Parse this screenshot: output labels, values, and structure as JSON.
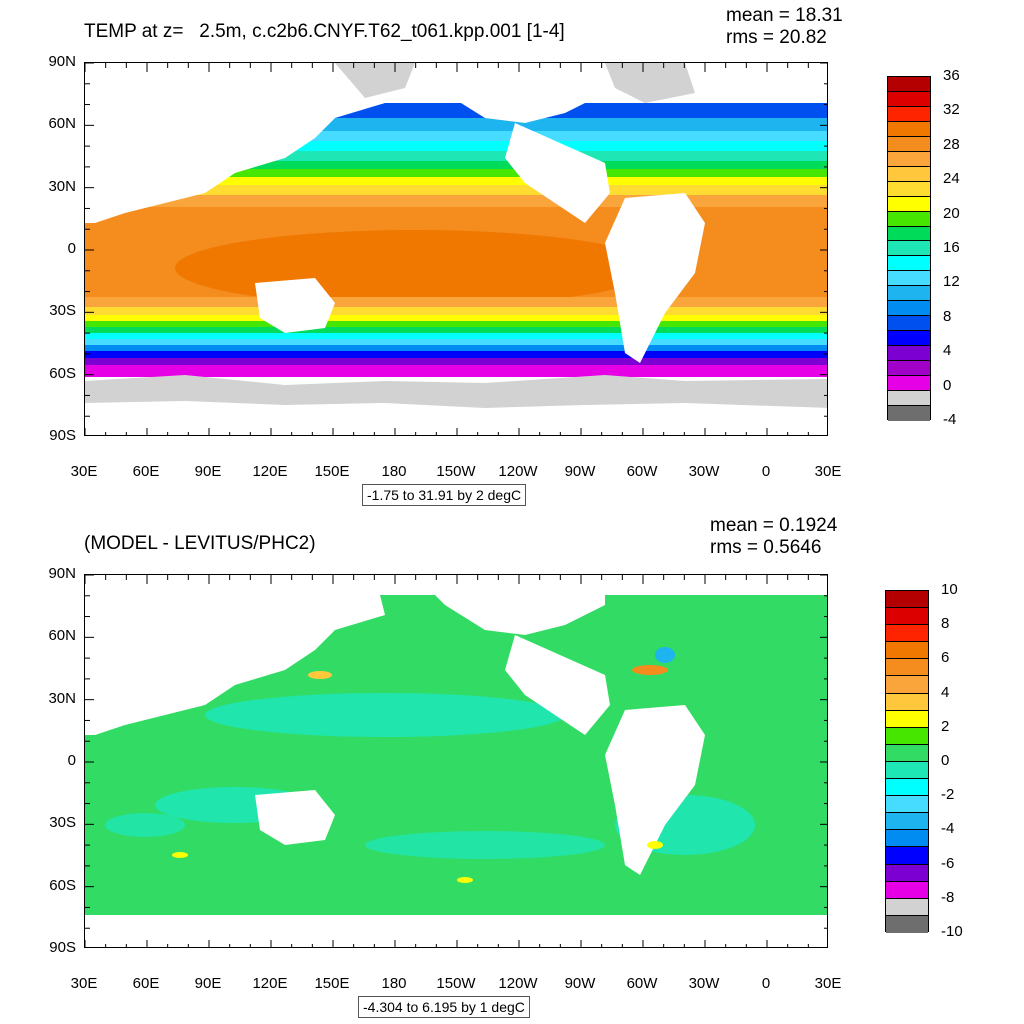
{
  "panels": [
    {
      "title": "TEMP at z=   2.5m, c.c2b6.CNYF.T62_t061.kpp.001 [1-4]",
      "mean_text": "mean = 18.31",
      "rms_text": "rms = 20.82",
      "range_text": "-1.75 to 31.91 by 2 degC",
      "lat_labels": [
        "90N",
        "60N",
        "30N",
        "0",
        "30S",
        "60S",
        "90S"
      ],
      "lon_labels": [
        "30E",
        "60E",
        "90E",
        "120E",
        "150E",
        "180",
        "150W",
        "120W",
        "90W",
        "60W",
        "30W",
        "0",
        "30E"
      ],
      "colorbar_labels": [
        "36",
        "32",
        "28",
        "24",
        "20",
        "16",
        "12",
        "8",
        "4",
        "0",
        "-4"
      ],
      "colorbar_colors": [
        "#b40000",
        "#dc0000",
        "#ff2400",
        "#f07800",
        "#f58c1e",
        "#faa53c",
        "#ffc83c",
        "#ffdc32",
        "#ffff00",
        "#46e600",
        "#00dc5a",
        "#1ee6b4",
        "#00ffff",
        "#46dcff",
        "#1eb4f0",
        "#008cf0",
        "#0050f0",
        "#0000ff",
        "#7d00d2",
        "#a000c8",
        "#e600e6",
        "#d2d2d2",
        "#6e6e6e"
      ]
    },
    {
      "title": "(MODEL - LEVITUS/PHC2)",
      "mean_text": "mean = 0.1924",
      "rms_text": "rms = 0.5646",
      "range_text": "-4.304 to 6.195 by 1 degC",
      "lat_labels": [
        "90N",
        "60N",
        "30N",
        "0",
        "30S",
        "60S",
        "90S"
      ],
      "lon_labels": [
        "30E",
        "60E",
        "90E",
        "120E",
        "150E",
        "180",
        "150W",
        "120W",
        "90W",
        "60W",
        "30W",
        "0",
        "30E"
      ],
      "colorbar_labels": [
        "10",
        "8",
        "6",
        "4",
        "2",
        "0",
        "-2",
        "-4",
        "-6",
        "-8",
        "-10"
      ],
      "colorbar_colors": [
        "#b40000",
        "#dc0000",
        "#ff2400",
        "#f07800",
        "#f58c1e",
        "#faa53c",
        "#ffc83c",
        "#ffff00",
        "#46e600",
        "#32dc64",
        "#1ee6b4",
        "#00ffff",
        "#46dcff",
        "#1eb4f0",
        "#008cf0",
        "#0000ff",
        "#7d00d2",
        "#e600e6",
        "#d2d2d2",
        "#6e6e6e"
      ]
    }
  ]
}
